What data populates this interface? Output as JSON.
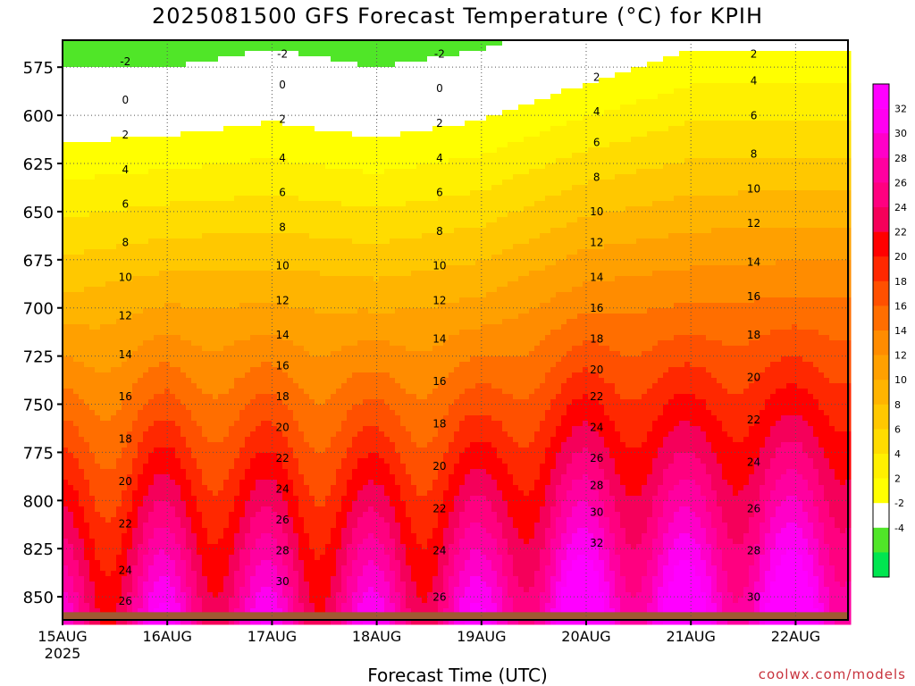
{
  "chart_data": {
    "type": "heatmap",
    "title": "2025081500 GFS Forecast Temperature (°C) for KPIH",
    "xlabel": "Forecast Time (UTC)",
    "ylabel": "",
    "y_scale": "pressure (hPa), inverted",
    "y_ticks": [
      575,
      600,
      625,
      650,
      675,
      700,
      725,
      750,
      775,
      800,
      825,
      850
    ],
    "ylim": [
      862,
      561
    ],
    "x_ticks": [
      "15AUG",
      "16AUG",
      "17AUG",
      "18AUG",
      "19AUG",
      "20AUG",
      "21AUG",
      "22AUG"
    ],
    "x_year_label": "2025",
    "xlim_days": [
      0,
      7.5
    ],
    "grid": true,
    "colorbar": {
      "placement": "right",
      "tick_labels": [
        "32",
        "30",
        "28",
        "26",
        "24",
        "22",
        "20",
        "18",
        "16",
        "14",
        "12",
        "10",
        "8",
        "6",
        "4",
        "2",
        "-2",
        "-4"
      ],
      "levels": [
        -6,
        -4,
        -2,
        2,
        4,
        6,
        8,
        10,
        12,
        14,
        16,
        18,
        20,
        22,
        24,
        26,
        28,
        30,
        32,
        34
      ],
      "colors": [
        "#00e650",
        "#50e628",
        "#ffffff",
        "#ffff00",
        "#fff000",
        "#ffdc00",
        "#ffc800",
        "#ffb400",
        "#ffa000",
        "#ff8c00",
        "#ff6e00",
        "#ff5000",
        "#ff2800",
        "#ff0000",
        "#f5005a",
        "#ff0080",
        "#ff00a0",
        "#ff00c8",
        "#ff00f0"
      ],
      "above_max": "#ff00ff"
    },
    "profile": {
      "description_values": "Approximate temperature (°C) vs pressure at the start of each day",
      "points": [
        {
          "day": 0,
          "t850": 26,
          "t575": -2
        },
        {
          "day": 1,
          "t850": 29,
          "t575": -2
        },
        {
          "day": 2,
          "t850": 28,
          "t575": -1
        },
        {
          "day": 3,
          "t850": 28,
          "t575": -2
        },
        {
          "day": 4,
          "t850": 29,
          "t575": -1
        },
        {
          "day": 5,
          "t850": 33,
          "t575": 1
        },
        {
          "day": 6,
          "t850": 32,
          "t575": 3
        },
        {
          "day": 7,
          "t850": 33,
          "t575": 3
        }
      ]
    },
    "contour_labels": [
      "-2",
      "0",
      "2",
      "4",
      "6",
      "8",
      "10",
      "12",
      "14",
      "16",
      "18",
      "20",
      "22",
      "24",
      "26",
      "28",
      "30",
      "32"
    ],
    "terrain_color": "#a05a32"
  },
  "credit": "coolwx.com/models"
}
